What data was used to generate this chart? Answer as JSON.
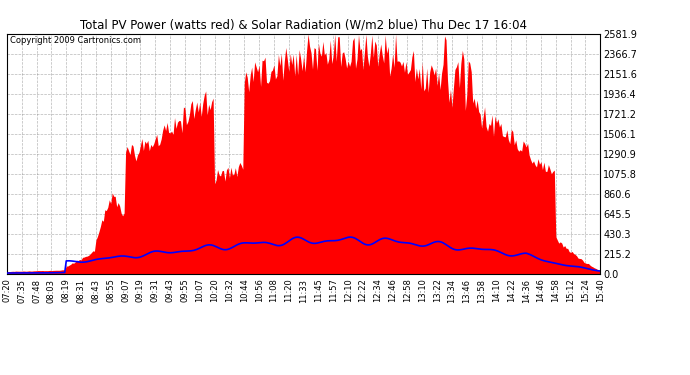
{
  "title": "Total PV Power (watts red) & Solar Radiation (W/m2 blue) Thu Dec 17 16:04",
  "copyright": "Copyright 2009 Cartronics.com",
  "background_color": "#ffffff",
  "plot_bg_color": "#ffffff",
  "grid_color": "#888888",
  "red_color": "#ff0000",
  "blue_color": "#0000ff",
  "ymax": 2581.9,
  "yticks": [
    0.0,
    215.2,
    430.3,
    645.5,
    860.6,
    1075.8,
    1290.9,
    1506.1,
    1721.2,
    1936.4,
    2151.6,
    2366.7,
    2581.9
  ],
  "xtick_labels": [
    "07:20",
    "07:35",
    "07:48",
    "08:03",
    "08:19",
    "08:31",
    "08:43",
    "08:55",
    "09:07",
    "09:19",
    "09:31",
    "09:43",
    "09:55",
    "10:07",
    "10:20",
    "10:32",
    "10:44",
    "10:56",
    "11:08",
    "11:20",
    "11:33",
    "11:45",
    "11:57",
    "12:10",
    "12:22",
    "12:34",
    "12:46",
    "12:58",
    "13:10",
    "13:22",
    "13:34",
    "13:46",
    "13:58",
    "14:10",
    "14:22",
    "14:36",
    "14:46",
    "14:58",
    "15:12",
    "15:24",
    "15:40"
  ]
}
